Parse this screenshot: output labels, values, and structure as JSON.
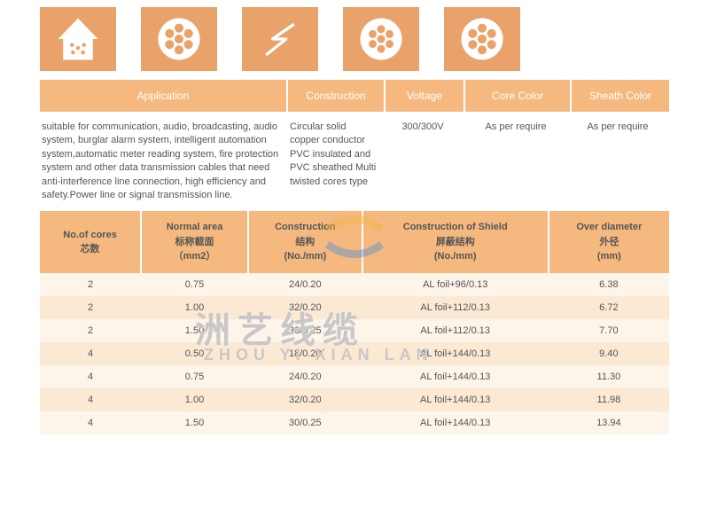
{
  "colors": {
    "accent": "#e9a36a",
    "header": "#f5b97f",
    "rowOdd": "#fdf4ea",
    "rowEven": "#fbe9d4",
    "text": "#555"
  },
  "icons": [
    "house",
    "cable6",
    "lightning",
    "cable7",
    "cable6"
  ],
  "specHeaders": {
    "application": "Application",
    "construction": "Construction",
    "voltage": "Voltage",
    "coreColor": "Core Color",
    "sheathColor": "Sheath Color"
  },
  "specWidths": {
    "application": 280,
    "construction": 110,
    "voltage": 90,
    "coreColor": 120,
    "sheathColor": 110
  },
  "specContent": {
    "application": "suitable for communication, audio, broadcasting, audio system, burglar alarm system, intelligent automation system,automatic meter reading system, fire protection system and other data transmission cables that need anti-interference line connection, high efficiency and safety.Power line or signal transmission line.",
    "construction": "Circular solid copper conductor PVC insulated and PVC sheathed Multi twisted cores type",
    "voltage": "300/300V",
    "coreColor": "As per require",
    "sheathColor": "As per require"
  },
  "tableColumns": [
    {
      "en": "No.of cores",
      "zh": "芯数",
      "unit": ""
    },
    {
      "en": "Normal area",
      "zh": "标称截面",
      "unit": "（mm2）"
    },
    {
      "en": "Construction",
      "zh": "结构",
      "unit": "(No./mm)"
    },
    {
      "en": "Construction of Shield",
      "zh": "屏蔽结构",
      "unit": "(No./mm)"
    },
    {
      "en": "Over diameter",
      "zh": "外径",
      "unit": "(mm)"
    }
  ],
  "tableRows": [
    [
      "2",
      "0.75",
      "24/0.20",
      "AL foil+96/0.13",
      "6.38"
    ],
    [
      "2",
      "1.00",
      "32/0.20",
      "AL foil+112/0.13",
      "6.72"
    ],
    [
      "2",
      "1.50",
      "30/0.25",
      "AL foil+112/0.13",
      "7.70"
    ],
    [
      "4",
      "0.50",
      "18/0.20",
      "AL foil+144/0.13",
      "9.40"
    ],
    [
      "4",
      "0.75",
      "24/0.20",
      "AL foil+144/0.13",
      "11.30"
    ],
    [
      "4",
      "1.00",
      "32/0.20",
      "AL foil+144/0.13",
      "11.98"
    ],
    [
      "4",
      "1.50",
      "30/0.25",
      "AL foil+144/0.13",
      "13.94"
    ]
  ],
  "watermark": {
    "cn": "洲艺线缆",
    "en": "ZHOU YI XIAN LAN"
  }
}
